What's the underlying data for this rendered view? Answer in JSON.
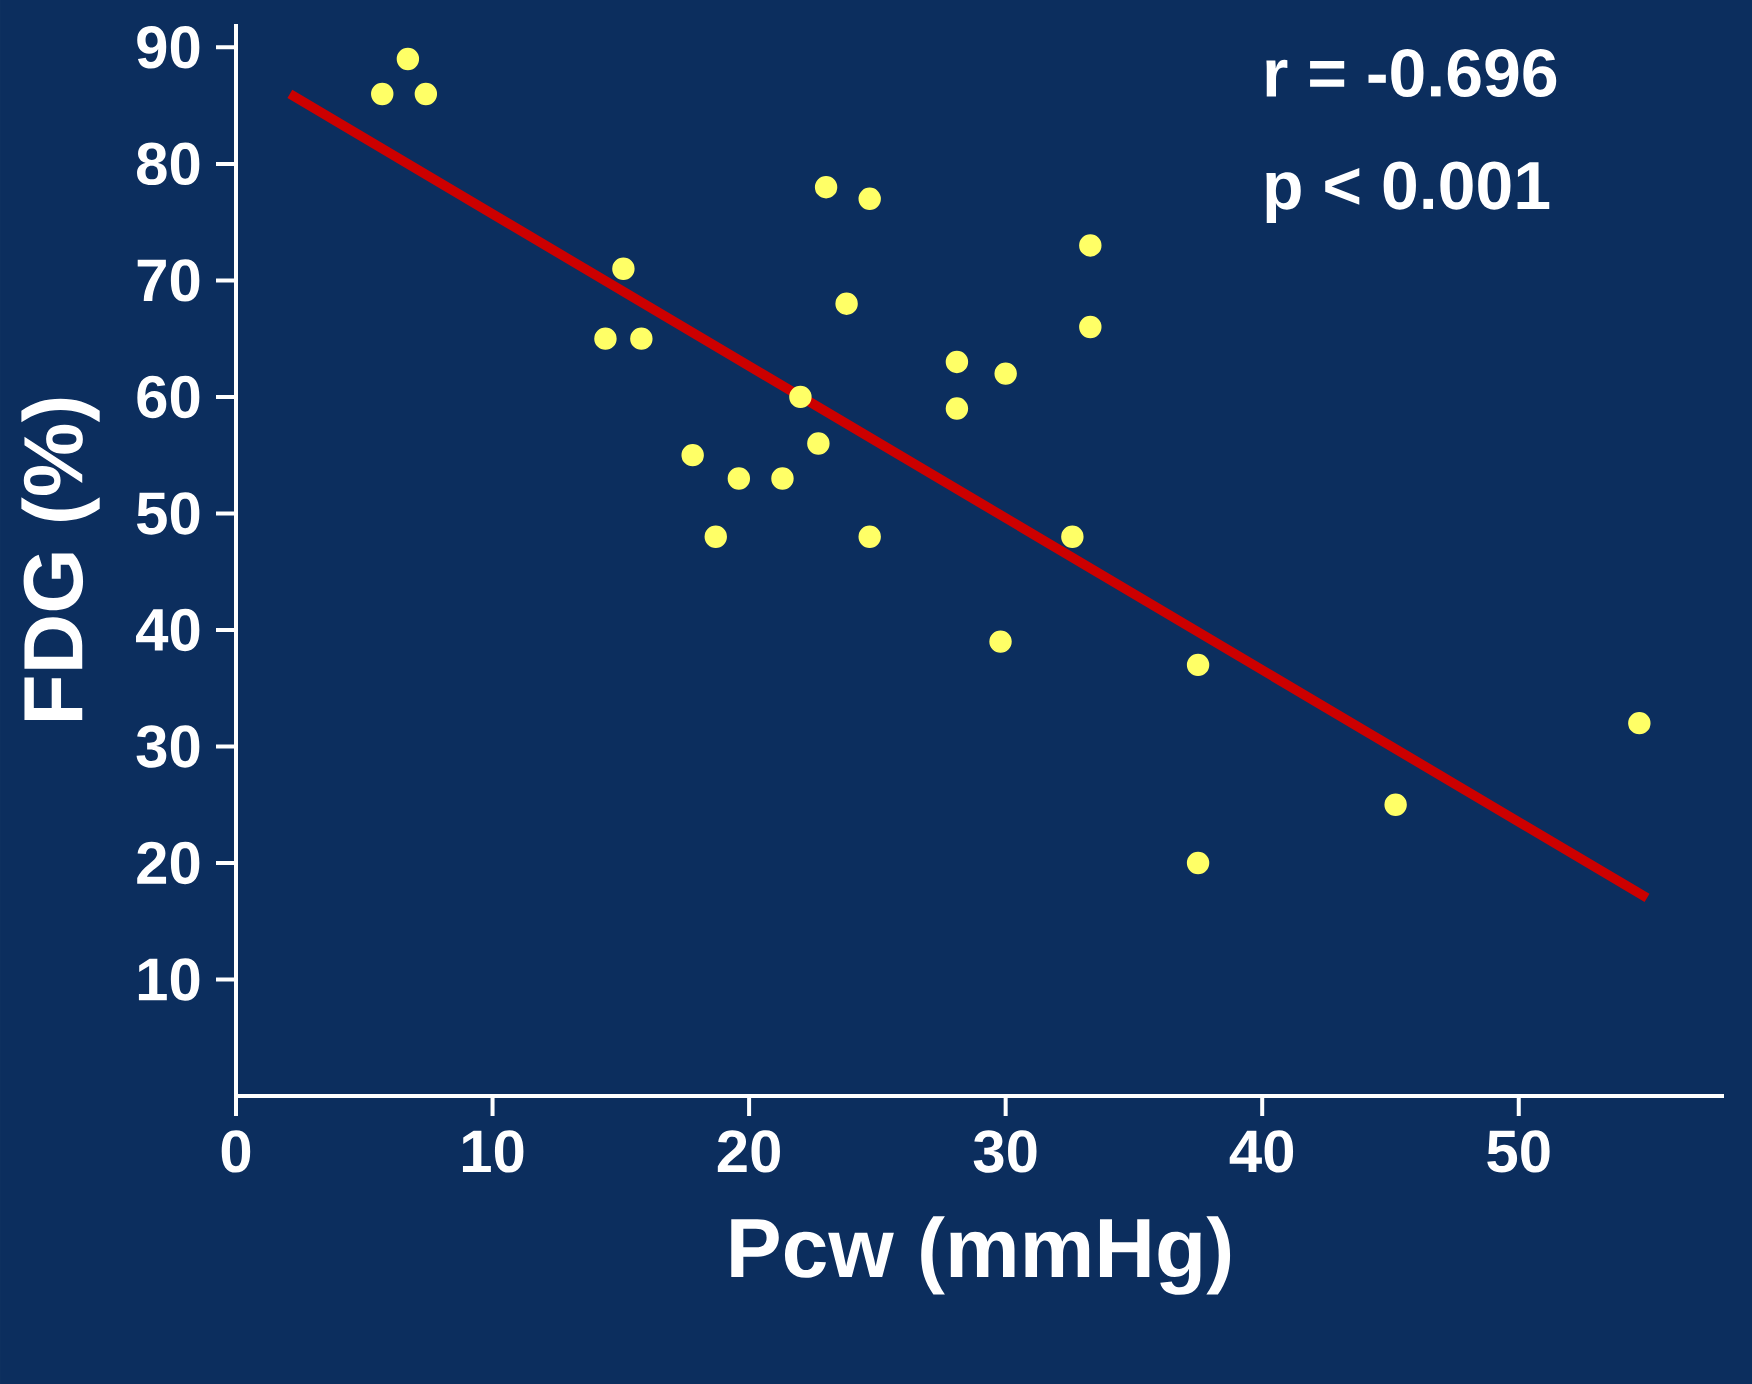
{
  "chart_data": {
    "type": "scatter",
    "xlabel": "Pcw (mmHg)",
    "ylabel": "FDG (%)",
    "xlim": [
      0,
      58
    ],
    "ylim": [
      0,
      92
    ],
    "xticks": [
      0,
      10,
      20,
      30,
      40,
      50
    ],
    "yticks": [
      10,
      20,
      30,
      40,
      50,
      60,
      70,
      80,
      90
    ],
    "grid": false,
    "marker": "circle",
    "annotations": [
      "r = -0.696",
      "p < 0.001"
    ],
    "series": [
      {
        "color": "#ffff66",
        "x": [
          5.7,
          6.7,
          7.4,
          15.1,
          14.4,
          15.8,
          17.8,
          18.7,
          19.6,
          21.3,
          22.0,
          22.7,
          23.0,
          24.7,
          23.8,
          24.7,
          28.1,
          28.1,
          30.0,
          29.8,
          32.6,
          33.3,
          33.3,
          37.5,
          37.5,
          45.2,
          54.7
        ],
        "values": [
          86,
          89,
          86,
          71,
          65,
          65,
          55,
          48,
          53,
          53,
          60,
          56,
          78,
          77,
          68,
          48,
          63,
          59,
          62,
          39,
          48,
          73,
          66,
          37,
          20,
          25,
          32
        ]
      },
      {
        "type": "line",
        "marker": "none",
        "color": "#cc0000",
        "x": [
          2.1,
          55.0
        ],
        "values": [
          86,
          17
        ]
      }
    ]
  }
}
